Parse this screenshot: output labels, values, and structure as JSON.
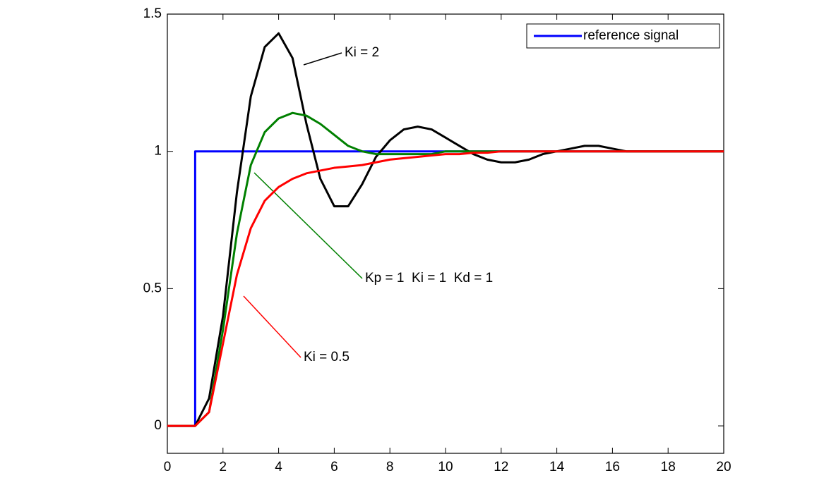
{
  "chart_data": {
    "type": "line",
    "xlim": [
      0,
      20
    ],
    "xticks": [
      0,
      2,
      4,
      6,
      8,
      10,
      12,
      14,
      16,
      18,
      20
    ],
    "ylim": [
      -0.1,
      1.5
    ],
    "yticks": [
      0,
      0.5,
      1,
      1.5
    ],
    "legend": "upper right",
    "x": [
      0,
      0.5,
      1,
      1.5,
      2,
      2.5,
      3,
      3.5,
      4,
      4.5,
      5,
      5.5,
      6,
      6.5,
      7,
      7.5,
      8,
      8.5,
      9,
      9.5,
      10,
      10.5,
      11,
      11.5,
      12,
      12.5,
      13,
      13.5,
      14,
      14.5,
      15,
      15.5,
      16,
      16.5,
      17,
      17.5,
      18,
      18.5,
      19,
      19.5,
      20
    ],
    "series": [
      {
        "name": "reference signal",
        "color": "#0000ff",
        "in_legend": true,
        "x": [
          0,
          1,
          1,
          20
        ],
        "values": [
          0,
          0,
          1,
          1
        ]
      },
      {
        "name": "Ki = 2",
        "color": "#000000",
        "values": [
          0,
          0,
          0,
          0.1,
          0.4,
          0.85,
          1.2,
          1.38,
          1.43,
          1.34,
          1.1,
          0.9,
          0.8,
          0.8,
          0.88,
          0.98,
          1.04,
          1.08,
          1.09,
          1.08,
          1.05,
          1.02,
          0.99,
          0.97,
          0.96,
          0.96,
          0.97,
          0.99,
          1.0,
          1.01,
          1.02,
          1.02,
          1.01,
          1.0,
          1.0,
          1.0,
          1.0,
          1.0,
          1.0,
          1.0,
          1.0
        ]
      },
      {
        "name": "Kp = 1  Ki = 1  Kd = 1",
        "color": "#008000",
        "values": [
          0,
          0,
          0,
          0.05,
          0.35,
          0.7,
          0.95,
          1.07,
          1.12,
          1.14,
          1.13,
          1.1,
          1.06,
          1.02,
          1.0,
          0.99,
          0.99,
          0.99,
          0.99,
          0.99,
          1.0,
          1.0,
          1.0,
          1.0,
          1.0,
          1.0,
          1.0,
          1.0,
          1.0,
          1.0,
          1.0,
          1.0,
          1.0,
          1.0,
          1.0,
          1.0,
          1.0,
          1.0,
          1.0,
          1.0,
          1.0
        ]
      },
      {
        "name": "Ki = 0.5",
        "color": "#ff0000",
        "values": [
          0,
          0,
          0,
          0.05,
          0.3,
          0.55,
          0.72,
          0.82,
          0.87,
          0.9,
          0.92,
          0.93,
          0.94,
          0.945,
          0.95,
          0.96,
          0.97,
          0.975,
          0.98,
          0.985,
          0.99,
          0.99,
          0.995,
          0.995,
          1.0,
          1.0,
          1.0,
          1.0,
          1.0,
          1.0,
          1.0,
          1.0,
          1.0,
          1.0,
          1.0,
          1.0,
          1.0,
          1.0,
          1.0,
          1.0,
          1.0
        ]
      }
    ]
  }
}
